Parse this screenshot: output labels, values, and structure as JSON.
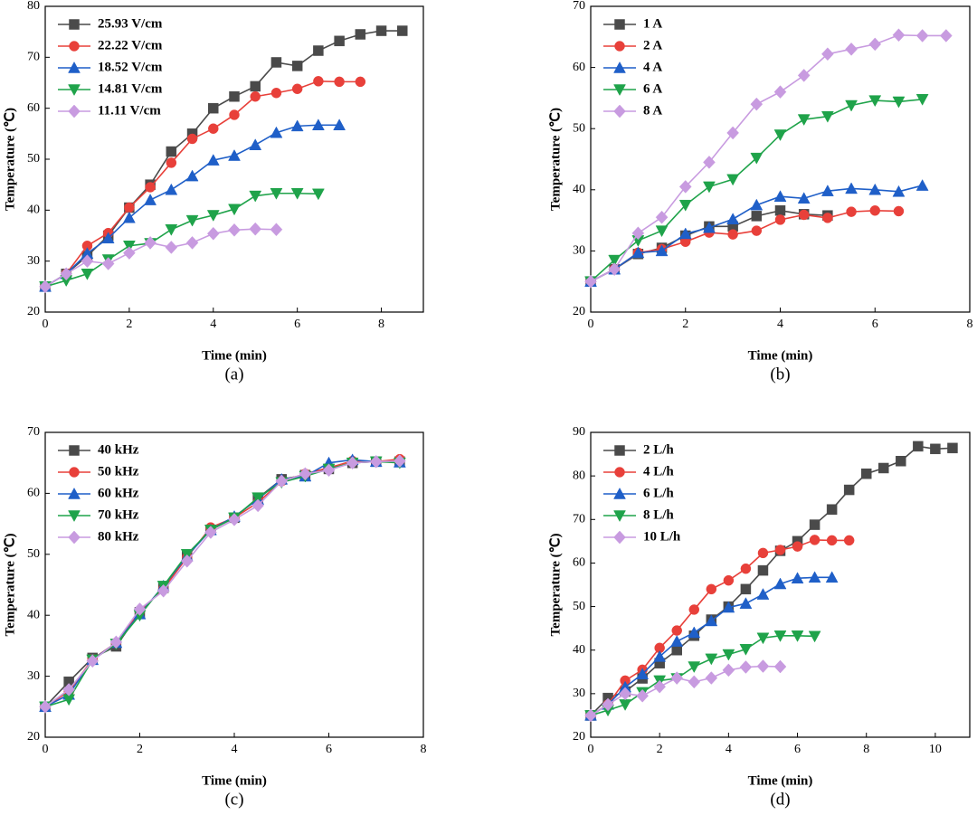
{
  "chart_data": [
    {
      "type": "line",
      "caption": "(a)",
      "xlabel": "Time (min)",
      "ylabel": "Temperature (℃)",
      "xlim": [
        0,
        9
      ],
      "xticks": [
        0,
        2,
        4,
        6,
        8
      ],
      "ylim": [
        20,
        80
      ],
      "yticks": [
        20,
        30,
        40,
        50,
        60,
        70,
        80
      ],
      "legend": "upper-left",
      "x": [
        0,
        0.5,
        1,
        1.5,
        2,
        2.5,
        3,
        3.5,
        4,
        4.5,
        5,
        5.5,
        6,
        6.5,
        7,
        7.5,
        8,
        8.5
      ],
      "series": [
        {
          "name": "25.93 V/cm",
          "color": "#4a4a4a",
          "marker": "square",
          "values": [
            25,
            27.5,
            31,
            35,
            40.5,
            45,
            51.5,
            55,
            60,
            62.3,
            64.3,
            69,
            68.3,
            71.3,
            73.2,
            74.5,
            75.2,
            75.2
          ]
        },
        {
          "name": "22.22 V/cm",
          "color": "#e8403a",
          "marker": "circle",
          "values": [
            25,
            27.5,
            33,
            35.5,
            40.5,
            44.5,
            49.3,
            54,
            56,
            58.7,
            62.3,
            63,
            63.8,
            65.3,
            65.2,
            65.2,
            null,
            null
          ]
        },
        {
          "name": "18.52 V/cm",
          "color": "#1f5fc8",
          "marker": "triangle-up",
          "values": [
            25,
            27.5,
            31.5,
            34.5,
            38.5,
            42,
            44,
            46.7,
            49.8,
            50.7,
            52.8,
            55.2,
            56.5,
            56.7,
            56.7,
            null,
            null,
            null
          ]
        },
        {
          "name": "14.81 V/cm",
          "color": "#1fa34a",
          "marker": "triangle-down",
          "values": [
            25,
            26.2,
            27.5,
            30.3,
            33,
            33.5,
            36.2,
            38,
            39,
            40.2,
            42.8,
            43.3,
            43.3,
            43.2,
            null,
            null,
            null,
            null
          ]
        },
        {
          "name": "11.11 V/cm",
          "color": "#c89be0",
          "marker": "diamond",
          "values": [
            25,
            27.5,
            30,
            29.5,
            31.6,
            33.6,
            32.7,
            33.6,
            35.4,
            36.1,
            36.3,
            36.2,
            null,
            null,
            null,
            null,
            null,
            null
          ]
        }
      ]
    },
    {
      "type": "line",
      "caption": "(b)",
      "xlabel": "Time (min)",
      "ylabel": "Temperature (℃)",
      "xlim": [
        0,
        8
      ],
      "xticks": [
        0,
        2,
        4,
        6,
        8
      ],
      "ylim": [
        20,
        70
      ],
      "yticks": [
        20,
        30,
        40,
        50,
        60,
        70
      ],
      "legend": "upper-left",
      "x": [
        0,
        0.5,
        1,
        1.5,
        2,
        2.5,
        3,
        3.5,
        4,
        4.5,
        5,
        5.5,
        6,
        6.5,
        7,
        7.5
      ],
      "series": [
        {
          "name": "1 A",
          "color": "#4a4a4a",
          "marker": "square",
          "values": [
            25,
            27,
            29.5,
            30.5,
            32.5,
            34,
            34,
            35.7,
            36.6,
            36,
            35.8,
            null,
            null,
            null,
            null,
            null
          ]
        },
        {
          "name": "2 A",
          "color": "#e8403a",
          "marker": "circle",
          "values": [
            25,
            27,
            29.7,
            30.3,
            31.5,
            33,
            32.7,
            33.3,
            35.1,
            35.9,
            35.4,
            36.4,
            36.6,
            36.5,
            null,
            null
          ]
        },
        {
          "name": "4 A",
          "color": "#1f5fc8",
          "marker": "triangle-up",
          "values": [
            25,
            27,
            29.7,
            30,
            32.8,
            33.8,
            35.2,
            37.5,
            38.9,
            38.6,
            39.8,
            40.2,
            40,
            39.7,
            40.7,
            null
          ]
        },
        {
          "name": "6 A",
          "color": "#1fa34a",
          "marker": "triangle-down",
          "values": [
            25,
            28.5,
            31.7,
            33.3,
            37.5,
            40.5,
            41.7,
            45.2,
            49,
            51.5,
            52,
            53.8,
            54.6,
            54.4,
            54.8,
            null
          ]
        },
        {
          "name": "8 A",
          "color": "#c89be0",
          "marker": "diamond",
          "values": [
            25,
            27,
            32.9,
            35.5,
            40.5,
            44.5,
            49.3,
            54,
            56,
            58.7,
            62.2,
            63,
            63.8,
            65.3,
            65.2,
            65.2
          ]
        }
      ]
    },
    {
      "type": "line",
      "caption": "(c)",
      "xlabel": "Time (min)",
      "ylabel": "Temperature (℃)",
      "xlim": [
        0,
        8
      ],
      "xticks": [
        0,
        2,
        4,
        6,
        8
      ],
      "ylim": [
        20,
        70
      ],
      "yticks": [
        20,
        30,
        40,
        50,
        60,
        70
      ],
      "legend": "upper-left",
      "x": [
        0,
        0.5,
        1,
        1.5,
        2,
        2.5,
        3,
        3.5,
        4,
        4.5,
        5,
        5.5,
        6,
        6.5,
        7,
        7.5
      ],
      "series": [
        {
          "name": "40 kHz",
          "color": "#4a4a4a",
          "marker": "square",
          "values": [
            25,
            29.1,
            33,
            34.9,
            40.5,
            44.5,
            49.9,
            54,
            56,
            59.2,
            62.3,
            63,
            64,
            65,
            65.2,
            65.2
          ]
        },
        {
          "name": "50 kHz",
          "color": "#e8403a",
          "marker": "circle",
          "values": [
            25,
            27.5,
            32.8,
            35.5,
            40.7,
            44.3,
            49.5,
            54.4,
            56,
            58.5,
            62,
            63.2,
            64.2,
            65.3,
            65.2,
            65.6
          ]
        },
        {
          "name": "60 kHz",
          "color": "#1f5fc8",
          "marker": "triangle-up",
          "values": [
            25,
            27,
            32.7,
            35.5,
            40.2,
            44.8,
            49.7,
            54,
            56.2,
            59,
            62.3,
            62.8,
            65,
            65.5,
            65.2,
            65.1
          ]
        },
        {
          "name": "70 kHz",
          "color": "#1fa34a",
          "marker": "triangle-down",
          "values": [
            25,
            26.2,
            32.7,
            35.3,
            40,
            44.8,
            50,
            54,
            56,
            59.3,
            61.8,
            62.8,
            64,
            65,
            65.2,
            65
          ]
        },
        {
          "name": "80 kHz",
          "color": "#c89be0",
          "marker": "diamond",
          "values": [
            25,
            27.8,
            32.5,
            35.6,
            41,
            44,
            48.9,
            53.6,
            55.7,
            58,
            62,
            63.2,
            63.8,
            65,
            65.2,
            65.3
          ]
        }
      ]
    },
    {
      "type": "line",
      "caption": "(d)",
      "xlabel": "Time (min)",
      "ylabel": "Temperature (℃)",
      "xlim": [
        0,
        11
      ],
      "xticks": [
        0,
        2,
        4,
        6,
        8,
        10
      ],
      "ylim": [
        20,
        90
      ],
      "yticks": [
        20,
        30,
        40,
        50,
        60,
        70,
        80,
        90
      ],
      "legend": "upper-left",
      "x": [
        0,
        0.5,
        1,
        1.5,
        2,
        2.5,
        3,
        3.5,
        4,
        4.5,
        5,
        5.5,
        6,
        6.5,
        7,
        7.5,
        8,
        8.5,
        9,
        9.5,
        10,
        10.5
      ],
      "series": [
        {
          "name": "2 L/h",
          "color": "#4a4a4a",
          "marker": "square",
          "values": [
            25,
            29,
            30.5,
            33.5,
            37,
            40,
            43.3,
            47,
            50,
            54,
            58.3,
            62.8,
            65,
            68.8,
            72.3,
            76.8,
            80.5,
            81.8,
            83.4,
            86.8,
            86.2,
            86.4
          ]
        },
        {
          "name": "4 L/h",
          "color": "#e8403a",
          "marker": "circle",
          "values": [
            25,
            27.5,
            33,
            35.5,
            40.5,
            44.5,
            49.3,
            54,
            56,
            58.7,
            62.3,
            63,
            63.8,
            65.3,
            65.2,
            65.2,
            null,
            null,
            null,
            null,
            null,
            null
          ]
        },
        {
          "name": "6 L/h",
          "color": "#1f5fc8",
          "marker": "triangle-up",
          "values": [
            25,
            27.5,
            31.5,
            34.5,
            38.5,
            42,
            44,
            46.7,
            49.8,
            50.7,
            52.8,
            55.2,
            56.5,
            56.7,
            56.7,
            null,
            null,
            null,
            null,
            null,
            null,
            null
          ]
        },
        {
          "name": "8 L/h",
          "color": "#1fa34a",
          "marker": "triangle-down",
          "values": [
            25,
            26.2,
            27.5,
            30.3,
            33,
            33.5,
            36.2,
            38,
            39,
            40.2,
            42.8,
            43.3,
            43.3,
            43.2,
            null,
            null,
            null,
            null,
            null,
            null,
            null,
            null
          ]
        },
        {
          "name": "10 L/h",
          "color": "#c89be0",
          "marker": "diamond",
          "values": [
            25,
            27.5,
            30,
            29.5,
            31.6,
            33.6,
            32.7,
            33.6,
            35.4,
            36.1,
            36.3,
            36.2,
            null,
            null,
            null,
            null,
            null,
            null,
            null,
            null,
            null,
            null
          ]
        }
      ]
    }
  ]
}
